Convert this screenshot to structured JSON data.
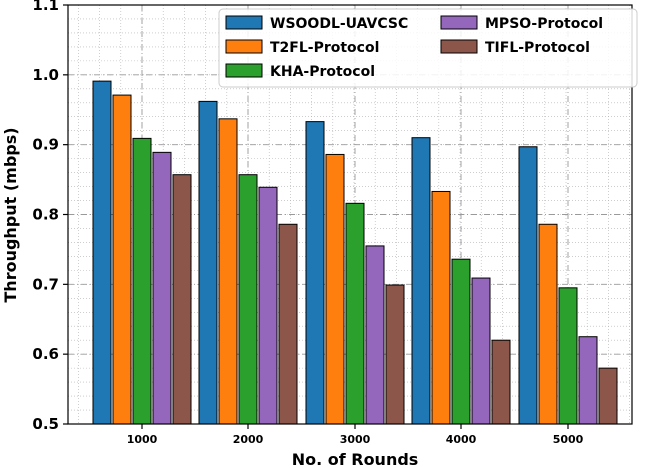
{
  "chart_data": {
    "type": "bar",
    "title": "",
    "xlabel": "No. of Rounds",
    "ylabel": "Throughput (mbps)",
    "categories": [
      "1000",
      "2000",
      "3000",
      "4000",
      "5000"
    ],
    "ylim": [
      0.5,
      1.1
    ],
    "yticks": [
      "0.5",
      "0.6",
      "0.7",
      "0.8",
      "0.9",
      "1.0",
      "1.1"
    ],
    "grid": true,
    "legend_position": "top-right",
    "series": [
      {
        "name": "WSOODL-UAVCSC",
        "color": "#1f77b4",
        "values": [
          0.991,
          0.962,
          0.933,
          0.91,
          0.897
        ]
      },
      {
        "name": "T2FL-Protocol",
        "color": "#ff7f0e",
        "values": [
          0.971,
          0.937,
          0.886,
          0.833,
          0.786
        ]
      },
      {
        "name": "KHA-Protocol",
        "color": "#2ca02c",
        "values": [
          0.909,
          0.857,
          0.816,
          0.736,
          0.695
        ]
      },
      {
        "name": "MPSO-Protocol",
        "color": "#9467bd",
        "values": [
          0.889,
          0.839,
          0.755,
          0.709,
          0.625
        ]
      },
      {
        "name": "TIFL-Protocol",
        "color": "#8c564b",
        "values": [
          0.857,
          0.786,
          0.699,
          0.62,
          0.58
        ]
      }
    ]
  }
}
